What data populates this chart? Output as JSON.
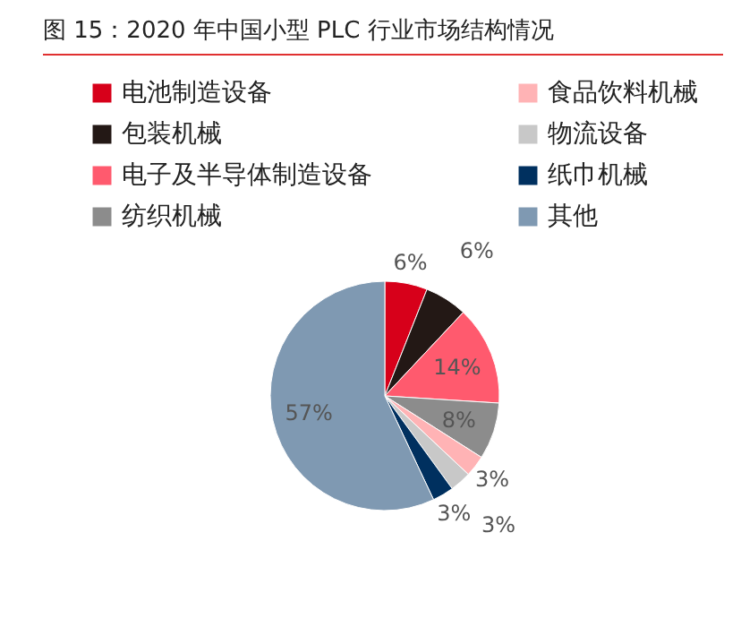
{
  "chart_data": {
    "type": "pie",
    "title": "图 15：2020 年中国小型 PLC 行业市场结构情况",
    "categories": [
      "电池制造设备",
      "包装机械",
      "电子及半导体制造设备",
      "纺织机械",
      "食品饮料机械",
      "物流设备",
      "纸巾机械",
      "其他"
    ],
    "values": [
      6,
      6,
      14,
      8,
      3,
      3,
      3,
      57
    ],
    "colors": [
      "#d7001a",
      "#231815",
      "#ff5a6e",
      "#8c8c8c",
      "#ffb3b5",
      "#c8c8c8",
      "#00305f",
      "#7f99b2"
    ],
    "value_labels": [
      "6%",
      "6%",
      "14%",
      "8%",
      "3%",
      "3%",
      "3%",
      "57%"
    ],
    "legend": "top"
  }
}
